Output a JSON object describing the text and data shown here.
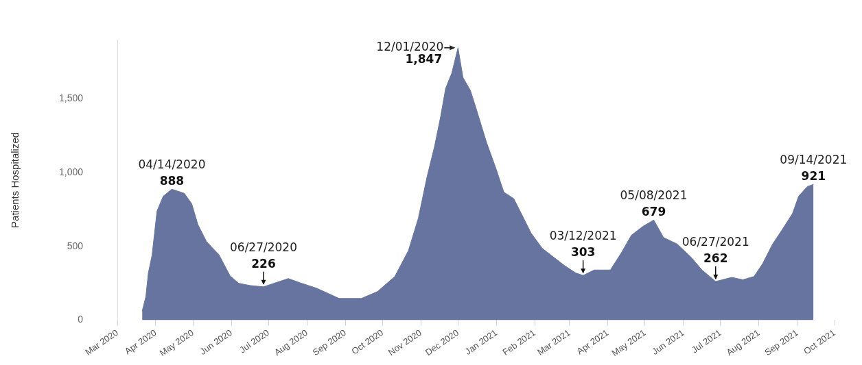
{
  "chart_data": {
    "type": "area",
    "ylabel": "Patients Hospitalized",
    "x": [
      "2020-03-21",
      "2020-03-24",
      "2020-03-26",
      "2020-03-29",
      "2020-04-02",
      "2020-04-07",
      "2020-04-14",
      "2020-04-24",
      "2020-04-30",
      "2020-05-05",
      "2020-05-12",
      "2020-05-22",
      "2020-05-31",
      "2020-06-07",
      "2020-06-16",
      "2020-06-27",
      "2020-07-17",
      "2020-07-27",
      "2020-08-09",
      "2020-08-27",
      "2020-09-14",
      "2020-09-27",
      "2020-10-11",
      "2020-10-22",
      "2020-10-30",
      "2020-11-06",
      "2020-11-12",
      "2020-11-17",
      "2020-11-21",
      "2020-11-26",
      "2020-12-01",
      "2020-12-05",
      "2020-12-11",
      "2020-12-16",
      "2020-12-24",
      "2020-12-31",
      "2021-01-07",
      "2021-01-15",
      "2021-01-22",
      "2021-01-29",
      "2021-02-07",
      "2021-02-16",
      "2021-02-25",
      "2021-03-06",
      "2021-03-12",
      "2021-03-21",
      "2021-04-03",
      "2021-04-12",
      "2021-04-20",
      "2021-04-29",
      "2021-05-08",
      "2021-05-16",
      "2021-05-27",
      "2021-06-07",
      "2021-06-16",
      "2021-06-27",
      "2021-07-10",
      "2021-07-19",
      "2021-07-28",
      "2021-08-04",
      "2021-08-12",
      "2021-08-19",
      "2021-08-28",
      "2021-09-02",
      "2021-09-09",
      "2021-09-14"
    ],
    "series": [
      {
        "color": "#6874a0",
        "values": [
          60,
          160,
          320,
          440,
          740,
          840,
          888,
          860,
          790,
          648,
          532,
          444,
          300,
          250,
          235,
          226,
          282,
          252,
          216,
          147,
          147,
          194,
          296,
          472,
          692,
          972,
          1176,
          1382,
          1572,
          1676,
          1847,
          1646,
          1558,
          1426,
          1206,
          1044,
          868,
          824,
          708,
          590,
          487,
          428,
          370,
          320,
          303,
          340,
          340,
          458,
          576,
          634,
          679,
          560,
          516,
          428,
          340,
          262,
          290,
          274,
          296,
          384,
          516,
          604,
          722,
          840,
          906,
          921
        ],
        "value_labels": [
          null,
          null,
          null,
          null,
          null,
          null,
          "888",
          null,
          null,
          null,
          null,
          null,
          null,
          null,
          null,
          "226",
          null,
          null,
          null,
          null,
          null,
          null,
          null,
          null,
          null,
          null,
          null,
          null,
          null,
          null,
          "1,847",
          null,
          null,
          null,
          null,
          null,
          null,
          null,
          null,
          null,
          null,
          null,
          null,
          null,
          "303",
          null,
          null,
          null,
          null,
          null,
          "679",
          null,
          null,
          null,
          null,
          "262",
          null,
          null,
          null,
          null,
          null,
          null,
          null,
          null,
          null,
          "921"
        ]
      }
    ],
    "xlim": [
      "2020-03-01",
      "2021-10-01"
    ],
    "xticks": [
      {
        "value": "2020-03-01",
        "label": "Mar 2020"
      },
      {
        "value": "2020-04-01",
        "label": "Apr 2020"
      },
      {
        "value": "2020-05-01",
        "label": "May 2020"
      },
      {
        "value": "2020-06-01",
        "label": "Jun 2020"
      },
      {
        "value": "2020-07-01",
        "label": "Jul 2020"
      },
      {
        "value": "2020-08-01",
        "label": "Aug 2020"
      },
      {
        "value": "2020-09-01",
        "label": "Sep 2020"
      },
      {
        "value": "2020-10-01",
        "label": "Oct 2020"
      },
      {
        "value": "2020-11-01",
        "label": "Nov 2020"
      },
      {
        "value": "2020-12-01",
        "label": "Dec 2020"
      },
      {
        "value": "2021-01-01",
        "label": "Jan 2021"
      },
      {
        "value": "2021-02-01",
        "label": "Feb 2021"
      },
      {
        "value": "2021-03-01",
        "label": "Mar 2021"
      },
      {
        "value": "2021-04-01",
        "label": "Apr 2021"
      },
      {
        "value": "2021-05-01",
        "label": "May 2021"
      },
      {
        "value": "2021-06-01",
        "label": "Jun 2021"
      },
      {
        "value": "2021-07-01",
        "label": "Jul 2021"
      },
      {
        "value": "2021-08-01",
        "label": "Aug 2021"
      },
      {
        "value": "2021-09-01",
        "label": "Sep 2021"
      },
      {
        "value": "2021-10-01",
        "label": "Oct 2021"
      }
    ],
    "ylim": [
      0,
      1900
    ],
    "yticks": [
      0,
      500,
      {
        "value": 1000,
        "label": "1,000"
      },
      {
        "value": 1500,
        "label": "1,500"
      }
    ],
    "annotations": [
      {
        "text": "04/14/2020",
        "x": "2020-04-14",
        "y": 888
      },
      {
        "text": "06/27/2020",
        "x": "2020-06-27",
        "y": 226
      },
      {
        "text": "12/01/2020",
        "x": "2020-12-01",
        "y": 1847
      },
      {
        "text": "03/12/2021",
        "x": "2021-03-12",
        "y": 303
      },
      {
        "text": "05/08/2021",
        "x": "2021-05-08",
        "y": 679
      },
      {
        "text": "06/27/2021",
        "x": "2021-06-27",
        "y": 262
      },
      {
        "text": "09/14/2021",
        "x": "2021-09-14",
        "y": 921
      }
    ]
  }
}
